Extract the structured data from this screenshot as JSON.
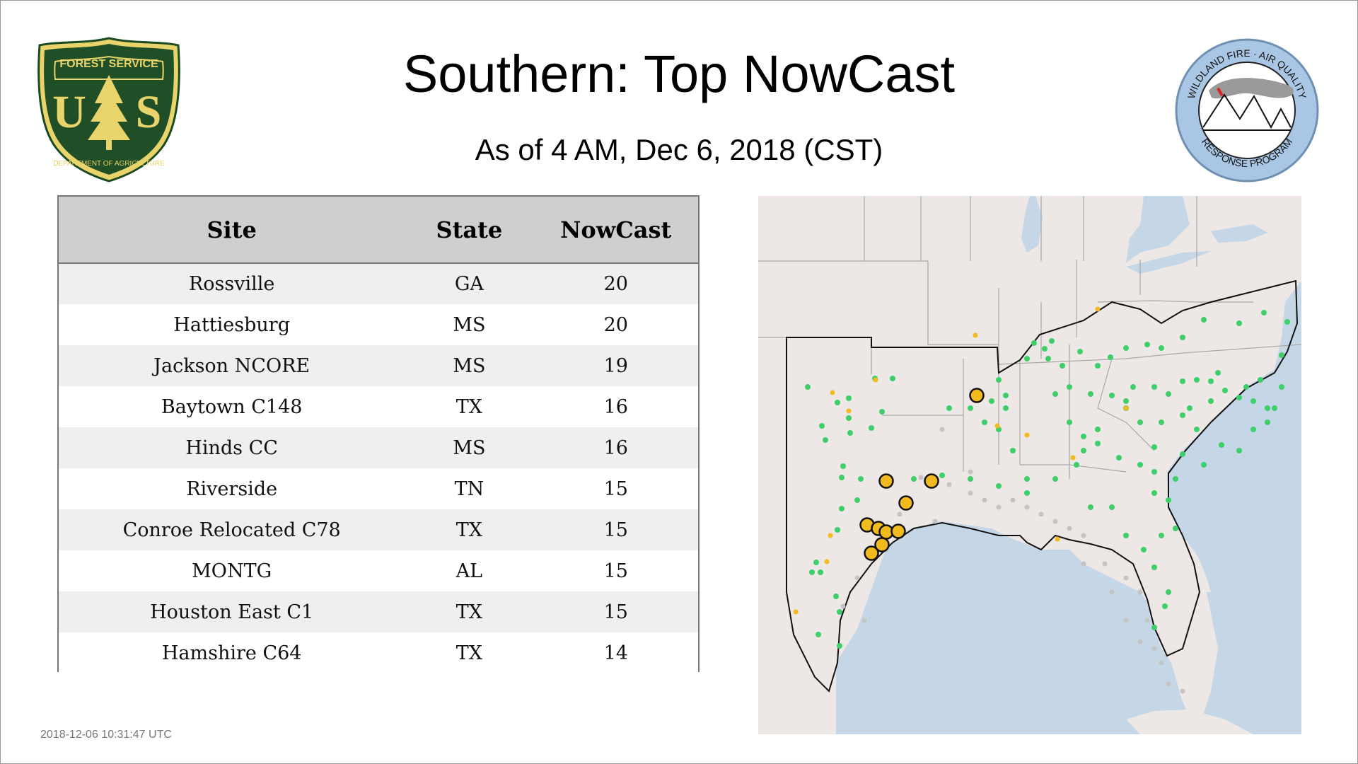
{
  "header": {
    "title": "Southern: Top NowCast",
    "subtitle": "As of  4 AM, Dec  6, 2018 (CST)"
  },
  "logos": {
    "usfs": {
      "top_text": "FOREST SERVICE",
      "letters": "US",
      "bottom_text": "DEPARTMENT OF AGRICULTURE"
    },
    "wfaq": {
      "top_text": "WILDLAND FIRE · AIR QUALITY",
      "bottom_text": "RESPONSE PROGRAM"
    }
  },
  "table": {
    "columns": [
      "Site",
      "State",
      "NowCast"
    ],
    "rows": [
      {
        "site": "Rossville",
        "state": "GA",
        "nowcast": "20"
      },
      {
        "site": "Hattiesburg",
        "state": "MS",
        "nowcast": "20"
      },
      {
        "site": "Jackson NCORE",
        "state": "MS",
        "nowcast": "19"
      },
      {
        "site": "Baytown C148",
        "state": "TX",
        "nowcast": "16"
      },
      {
        "site": "Hinds CC",
        "state": "MS",
        "nowcast": "16"
      },
      {
        "site": "Riverside",
        "state": "TN",
        "nowcast": "15"
      },
      {
        "site": "Conroe Relocated C78",
        "state": "TX",
        "nowcast": "15"
      },
      {
        "site": "MONTG",
        "state": "AL",
        "nowcast": "15"
      },
      {
        "site": "Houston East C1",
        "state": "TX",
        "nowcast": "15"
      },
      {
        "site": "Hamshire C64",
        "state": "TX",
        "nowcast": "14"
      }
    ]
  },
  "footer": {
    "timestamp": "2018-12-06 10:31:47 UTC"
  },
  "map": {
    "colors": {
      "land": "#ede8e6",
      "water": "#c5d6e6",
      "good": "#3ecf6a",
      "moderate": "#f2bb1d",
      "nodata": "#c4c4c4"
    },
    "highlighted_sites": [
      "Rossville",
      "Hattiesburg",
      "Jackson NCORE",
      "Baytown C148",
      "Hinds CC",
      "Riverside",
      "Conroe Relocated C78",
      "MONTG",
      "Houston East C1",
      "Hamshire C64"
    ]
  }
}
